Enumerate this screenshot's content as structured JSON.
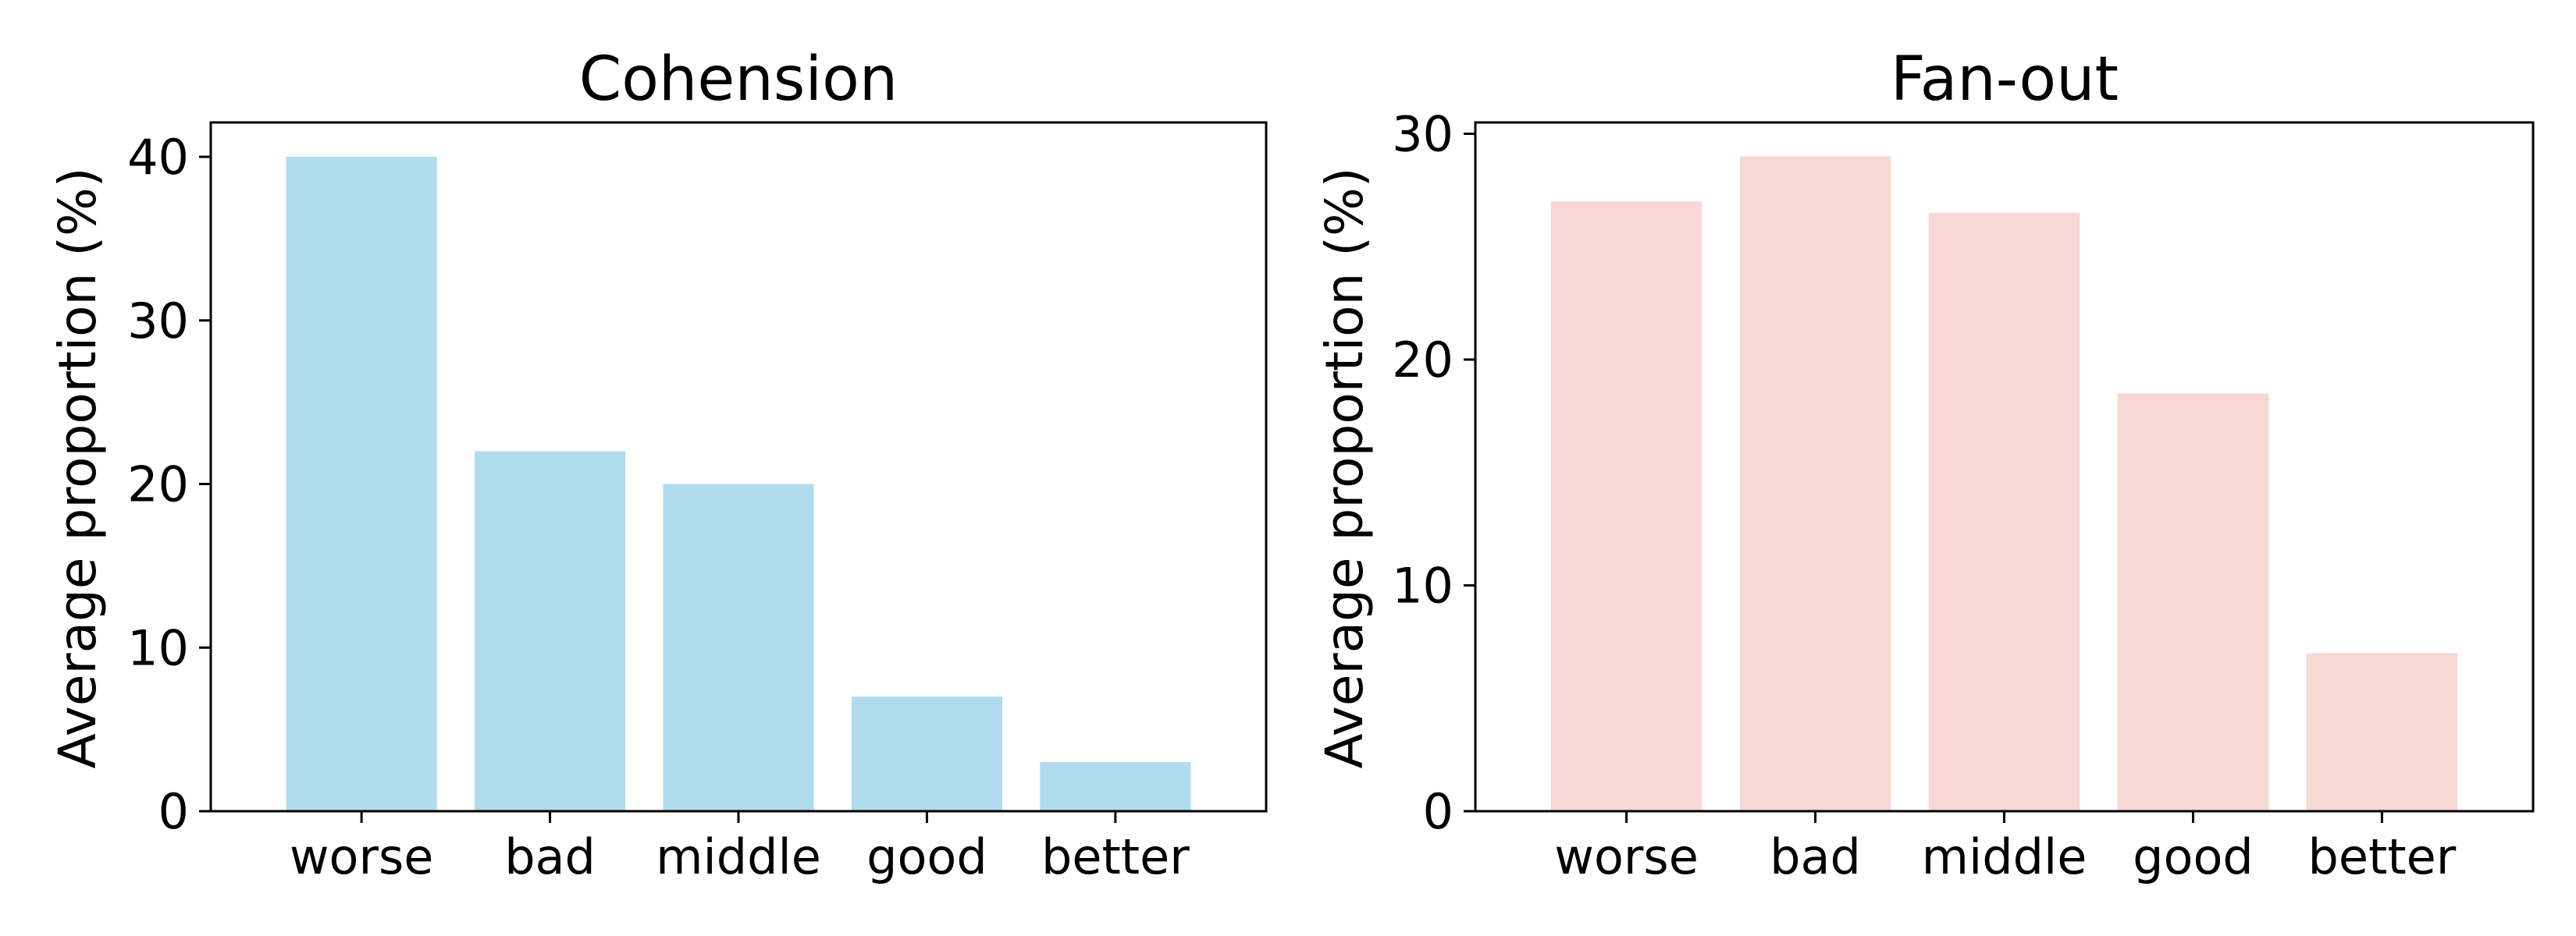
{
  "chart_data": [
    {
      "type": "bar",
      "title": "Cohension",
      "xlabel": "",
      "ylabel": "Average proportion (%)",
      "categories": [
        "worse",
        "bad",
        "middle",
        "good",
        "better"
      ],
      "values": [
        40,
        22,
        20,
        7,
        3
      ],
      "ylim": [
        0,
        42.1
      ],
      "yticks": [
        0,
        10,
        20,
        30,
        40
      ],
      "color": "#b0dcee",
      "grid": false
    },
    {
      "type": "bar",
      "title": "Fan-out",
      "xlabel": "",
      "ylabel": "Average proportion (%)",
      "categories": [
        "worse",
        "bad",
        "middle",
        "good",
        "better"
      ],
      "values": [
        27,
        29,
        26.5,
        18.5,
        7
      ],
      "ylim": [
        0,
        30.5
      ],
      "yticks": [
        0,
        10,
        20,
        30
      ],
      "color": "#f8d8d4",
      "grid": false
    }
  ]
}
